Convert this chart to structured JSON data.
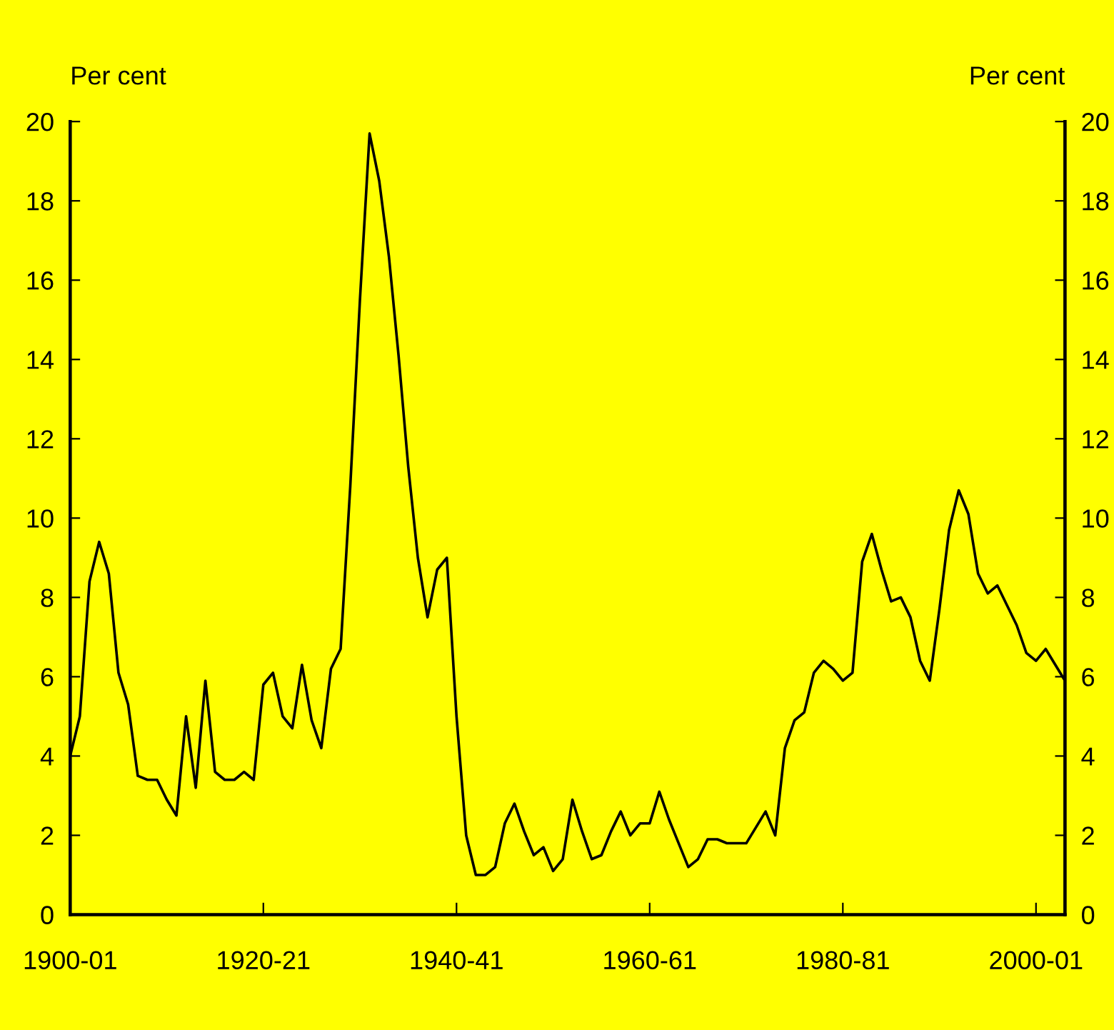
{
  "chart_data": {
    "type": "line",
    "ylabel": "Per cent",
    "y2label": "Per cent",
    "categories": [
      "1900-01",
      null,
      null,
      null,
      null,
      null,
      null,
      null,
      null,
      null,
      null,
      null,
      null,
      null,
      null,
      null,
      null,
      null,
      null,
      null,
      "1920-21",
      null,
      null,
      null,
      null,
      null,
      null,
      null,
      null,
      null,
      null,
      null,
      null,
      null,
      null,
      null,
      null,
      null,
      null,
      null,
      "1940-41",
      null,
      null,
      null,
      null,
      null,
      null,
      null,
      null,
      null,
      null,
      null,
      null,
      null,
      null,
      null,
      null,
      null,
      null,
      null,
      "1960-61",
      null,
      null,
      null,
      null,
      null,
      null,
      null,
      null,
      null,
      null,
      null,
      null,
      null,
      null,
      null,
      null,
      null,
      null,
      null,
      "1980-81",
      null,
      null,
      null,
      null,
      null,
      null,
      null,
      null,
      null,
      null,
      null,
      null,
      null,
      null,
      null,
      null,
      null,
      null,
      null,
      "2000-01",
      null,
      null,
      null
    ],
    "series": [
      {
        "color": "#000000",
        "values": [
          4.0,
          5.0,
          8.4,
          9.4,
          8.6,
          6.1,
          5.3,
          3.5,
          3.4,
          3.4,
          2.9,
          2.5,
          5.0,
          3.2,
          5.9,
          3.6,
          3.4,
          3.4,
          3.6,
          3.4,
          5.8,
          6.1,
          5.0,
          4.7,
          6.3,
          4.9,
          4.2,
          6.2,
          6.7,
          10.8,
          15.5,
          19.7,
          18.5,
          16.6,
          14.1,
          11.3,
          9.0,
          7.5,
          8.7,
          9.0,
          5.0,
          2.0,
          1.0,
          1.0,
          1.2,
          2.3,
          2.8,
          2.1,
          1.5,
          1.7,
          1.1,
          1.4,
          2.9,
          2.1,
          1.4,
          1.5,
          2.1,
          2.6,
          2.0,
          2.3,
          2.3,
          3.1,
          2.4,
          1.8,
          1.2,
          1.4,
          1.9,
          1.9,
          1.8,
          1.8,
          1.8,
          2.2,
          2.6,
          2.0,
          4.2,
          4.9,
          5.1,
          6.1,
          6.4,
          6.2,
          5.9,
          6.1,
          8.9,
          9.6,
          8.7,
          7.9,
          8.0,
          7.5,
          6.4,
          5.9,
          7.7,
          9.7,
          10.7,
          10.1,
          8.6,
          8.1,
          8.3,
          7.8,
          7.3,
          6.6,
          6.4,
          6.7,
          6.3,
          5.9
        ]
      }
    ],
    "ylim": [
      0,
      20
    ],
    "yticks": [
      0,
      2,
      4,
      6,
      8,
      10,
      12,
      14,
      16,
      18,
      20
    ],
    "y2lim": [
      0,
      20
    ],
    "y2ticks": [
      0,
      2,
      4,
      6,
      8,
      10,
      12,
      14,
      16,
      18,
      20
    ],
    "grid": false,
    "line_style": "solid"
  }
}
